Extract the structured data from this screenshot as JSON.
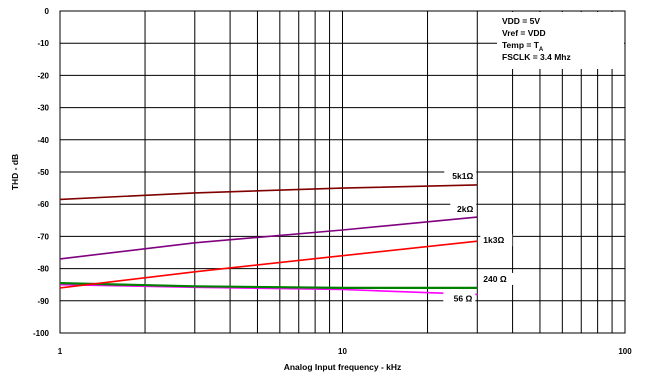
{
  "chart_data": {
    "type": "line",
    "xscale": "log",
    "xlim": [
      1,
      100
    ],
    "ylim": [
      -100,
      0
    ],
    "xticks": [
      1,
      10,
      100
    ],
    "xtick_labels": [
      "1",
      "10",
      "100"
    ],
    "yticks": [
      0,
      -10,
      -20,
      -30,
      -40,
      -50,
      -60,
      -70,
      -80,
      -90,
      -100
    ],
    "ytick_labels": [
      "0",
      "-10",
      "-20",
      "-30",
      "-40",
      "-50",
      "-60",
      "-70",
      "-80",
      "-90",
      "-100"
    ],
    "xlabel": "Analog Input frequency - kHz",
    "ylabel": "THD - dB",
    "grid": true,
    "annotations": [
      "VDD = 5V",
      "Vref = VDD",
      "Temp = T",
      "FSCLK = 3.4 Mhz"
    ],
    "annotation_subscript": "A",
    "series": [
      {
        "name": "5k1Ω",
        "color": "#800000",
        "x": [
          1,
          3,
          10,
          30
        ],
        "values": [
          -58.5,
          -56.5,
          -55,
          -54
        ]
      },
      {
        "name": "2kΩ",
        "color": "#800080",
        "x": [
          1,
          3,
          10,
          30
        ],
        "values": [
          -77,
          -72,
          -68,
          -64
        ]
      },
      {
        "name": "1k3Ω",
        "color": "#ff0000",
        "x": [
          1,
          3,
          10,
          30
        ],
        "values": [
          -86,
          -81,
          -76,
          -71.5
        ]
      },
      {
        "name": "240 Ω",
        "color": "#008000",
        "x": [
          1,
          3,
          10,
          30
        ],
        "values": [
          -84.5,
          -85.5,
          -86,
          -86
        ]
      },
      {
        "name": "56 Ω",
        "color": "#ff00ff",
        "x": [
          1,
          3,
          10,
          30
        ],
        "values": [
          -85,
          -85.8,
          -86.5,
          -88
        ]
      }
    ]
  }
}
